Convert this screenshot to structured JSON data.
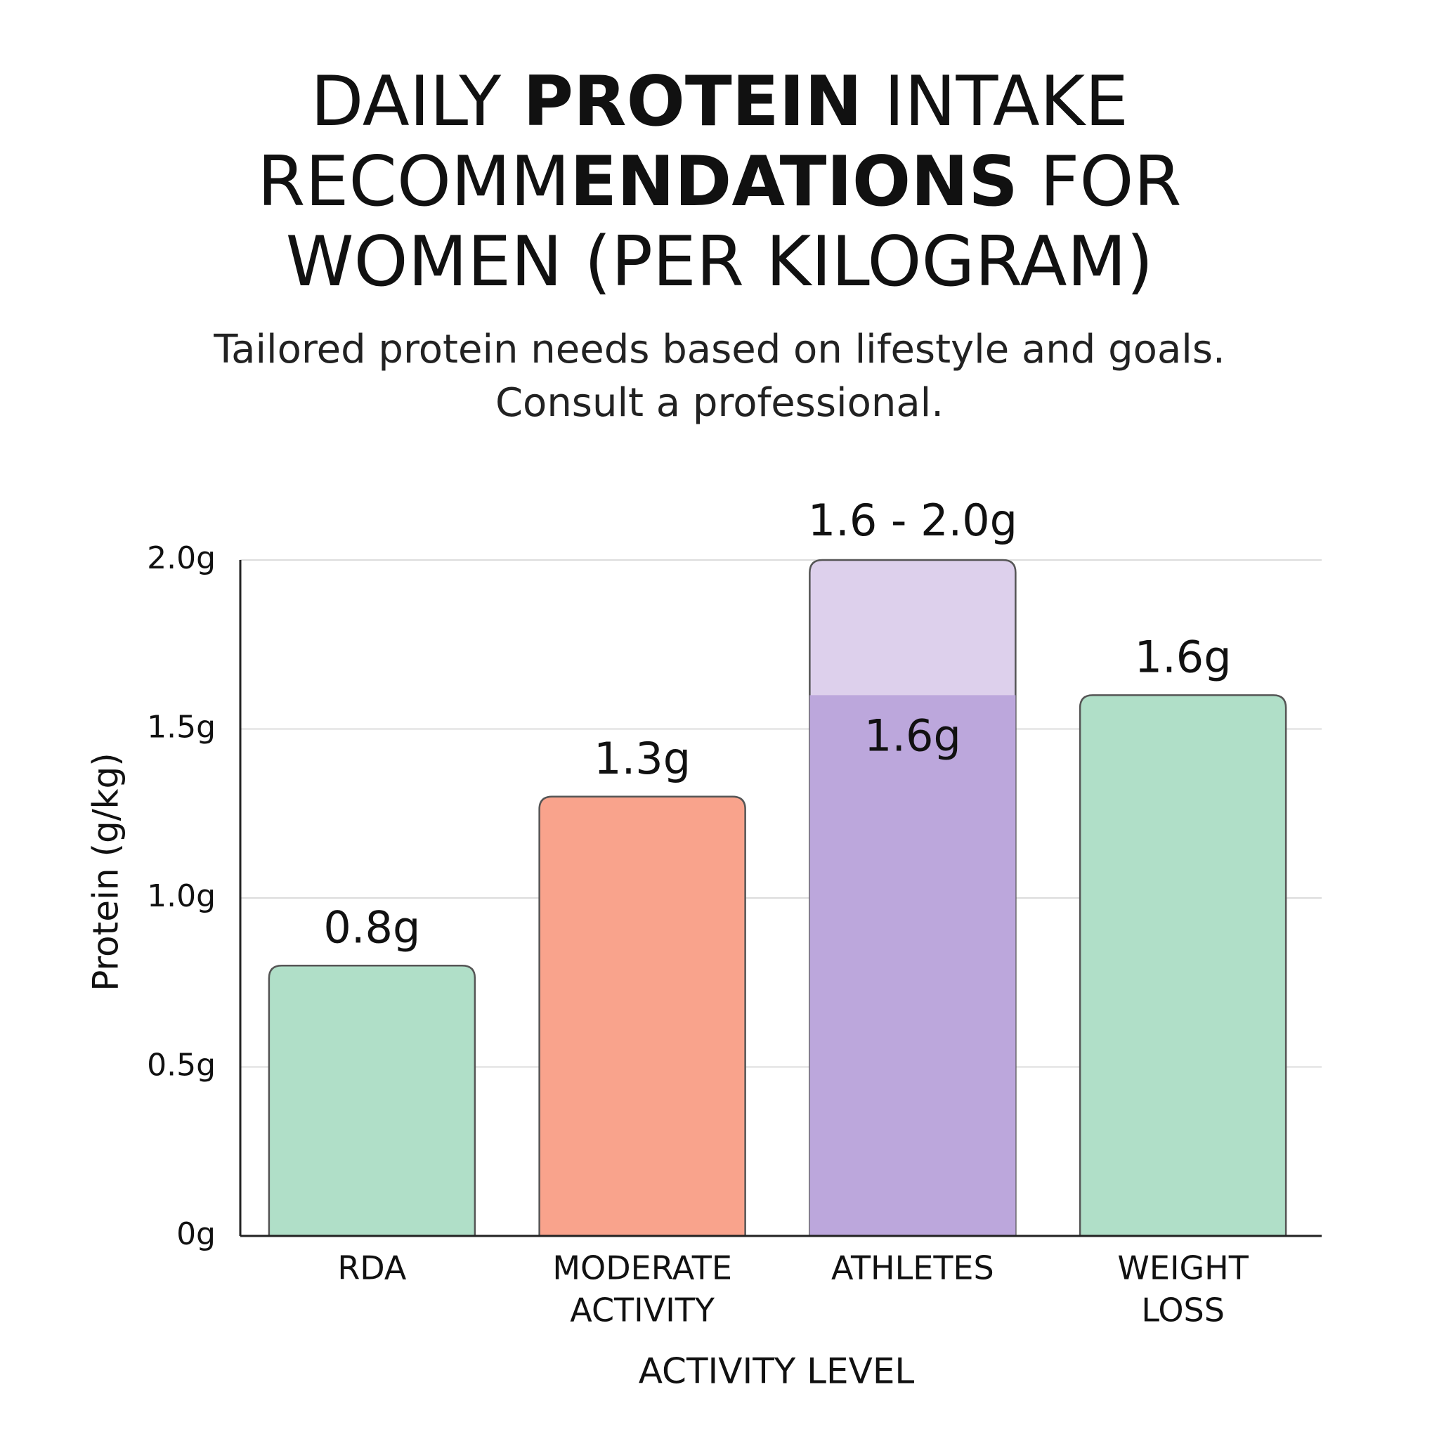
{
  "chart_data": {
    "type": "bar",
    "title": [
      [
        {
          "text": "DAILY "
        },
        {
          "text": "PROTEIN",
          "bold": true
        },
        {
          "text": " INTAKE"
        }
      ],
      [
        {
          "text": "RECOMM"
        },
        {
          "text": "ENDATIONS",
          "bold": true
        },
        {
          "text": " FOR"
        }
      ],
      [
        {
          "text": "WOMEN (PER KILOGRAM)"
        }
      ]
    ],
    "subtitle": [
      "Tailored protein needs based on lifestyle and goals.",
      "Consult a professional."
    ],
    "y_label": "Protein (g/kg)",
    "x_label": "ACTIVITY LEVEL",
    "categories": [
      [
        "RDA"
      ],
      [
        "MODERATE",
        "ACTIVITY"
      ],
      [
        "ATHLETES"
      ],
      [
        "WEIGHT",
        "LOSS"
      ]
    ],
    "values": [
      0.8,
      1.3,
      1.6,
      1.6
    ],
    "value_labels": [
      "0.8g",
      "1.3g",
      "1.6g",
      "1.6g"
    ],
    "colors": [
      "#b0dfc8",
      "#f9a38c",
      "#bca7dc",
      "#b0dfc8"
    ],
    "range_high": [
      null,
      null,
      2.0,
      null
    ],
    "range_labels": [
      null,
      null,
      "1.6 - 2.0g",
      null
    ],
    "range_color": "#ddd0ec",
    "ylim": [
      0,
      2.0
    ],
    "yticks": [
      {
        "value": 0,
        "label": "0g"
      },
      {
        "value": 0.5,
        "label": "0.5g"
      },
      {
        "value": 1.0,
        "label": "1.0g"
      },
      {
        "value": 1.5,
        "label": "1.5g"
      },
      {
        "value": 2.0,
        "label": "2.0g"
      }
    ],
    "grid": true
  }
}
